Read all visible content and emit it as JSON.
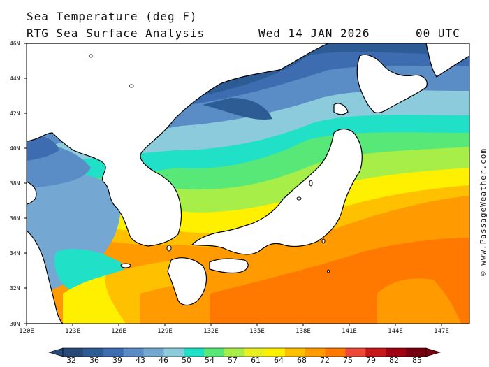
{
  "header": {
    "title": "Sea Temperature (deg F)",
    "subtitle": "RTG Sea Surface Analysis",
    "date": "Wed 14 JAN 2026",
    "time": "00 UTC"
  },
  "credit": "© www.PassageWeather.com",
  "map": {
    "lat_labels": [
      "46N",
      "44N",
      "42N",
      "40N",
      "38N",
      "36N",
      "34N",
      "32N",
      "30N"
    ],
    "lon_labels": [
      "120E",
      "123E",
      "126E",
      "129E",
      "132E",
      "135E",
      "138E",
      "141E",
      "144E",
      "147E"
    ]
  },
  "colorbar": {
    "labels": [
      "32",
      "36",
      "39",
      "43",
      "46",
      "50",
      "54",
      "57",
      "61",
      "64",
      "68",
      "72",
      "75",
      "79",
      "82",
      "85"
    ],
    "colors": [
      "#284a78",
      "#2d5c95",
      "#3d6cb0",
      "#5a8cc6",
      "#74a8d2",
      "#8ccbdb",
      "#20e0c8",
      "#58e878",
      "#a8ee48",
      "#e8f020",
      "#fff000",
      "#ffc000",
      "#ff9a00",
      "#ff7800",
      "#f04838",
      "#c81818",
      "#a00010",
      "#780010"
    ]
  }
}
